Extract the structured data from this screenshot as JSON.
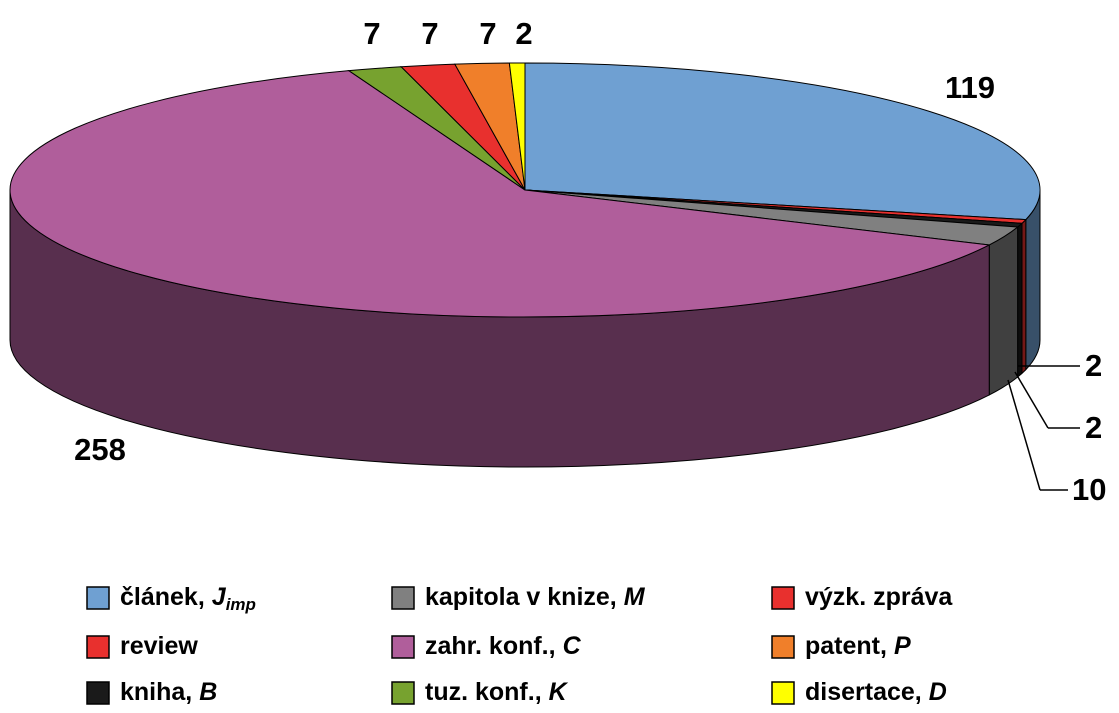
{
  "chart_data": {
    "type": "pie3d",
    "categories": [
      {
        "text": "článek,",
        "italic": "J",
        "sub": "imp"
      },
      {
        "text": "review"
      },
      {
        "text": "kniha,",
        "italic": "B"
      },
      {
        "text": "kapitola v knize,",
        "italic": "M"
      },
      {
        "text": "zahr. konf.,",
        "italic": "C"
      },
      {
        "text": "tuz. konf.,",
        "italic": "K"
      },
      {
        "text": "výzk. zpráva"
      },
      {
        "text": "patent,",
        "italic": "P"
      },
      {
        "text": "disertace,",
        "italic": "D"
      }
    ],
    "values": [
      119,
      2,
      2,
      10,
      258,
      7,
      7,
      7,
      2
    ],
    "colors": [
      "#6fa0d2",
      "#e8302e",
      "#1a1a1a",
      "#808080",
      "#b05e9b",
      "#77a22f",
      "#e8302e",
      "#f07f2a",
      "#ffff00"
    ],
    "legend": true
  }
}
